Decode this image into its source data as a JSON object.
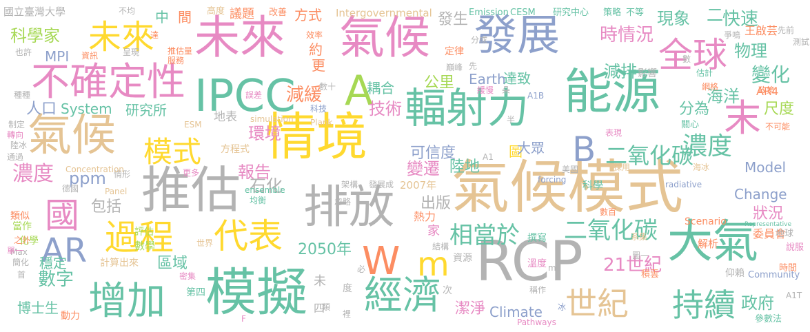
{
  "words": [
    {
      "text": "氣候模式",
      "color": "#e5c494"
    },
    {
      "text": "情境",
      "color": "#ffd92f"
    },
    {
      "text": "能源",
      "color": "#66c2a5"
    },
    {
      "text": "未來",
      "color": "#e78ac3"
    },
    {
      "text": "氣候",
      "color": "#e78ac3"
    },
    {
      "text": "推估",
      "color": "#b3b3b3"
    },
    {
      "text": "模擬",
      "color": "#66c2a5"
    },
    {
      "text": "排放",
      "color": "#b3b3b3"
    },
    {
      "text": "輻射力",
      "color": "#66c2a5"
    },
    {
      "text": "RCP",
      "color": "#b3b3b3"
    },
    {
      "text": "大氣",
      "color": "#66c2a5"
    },
    {
      "text": "IPCC",
      "color": "#66c2a5"
    },
    {
      "text": "發展",
      "color": "#8da0cb"
    },
    {
      "text": "氣候",
      "color": "#e5c494"
    },
    {
      "text": "增加",
      "color": "#66c2a5"
    },
    {
      "text": "不確定性",
      "color": "#e78ac3"
    },
    {
      "text": "全球",
      "color": "#e78ac3"
    },
    {
      "text": "經濟",
      "color": "#66c2a5"
    },
    {
      "text": "A",
      "color": "#a6d854"
    },
    {
      "text": "未來",
      "color": "#ffd92f"
    },
    {
      "text": "過程",
      "color": "#ffd92f"
    },
    {
      "text": "代表",
      "color": "#ffd92f"
    },
    {
      "text": "國",
      "color": "#e78ac3"
    },
    {
      "text": "AR",
      "color": "#8da0cb"
    },
    {
      "text": "模式",
      "color": "#ffd92f"
    },
    {
      "text": "W",
      "color": "#fc8d62"
    },
    {
      "text": "m",
      "color": "#ffd92f"
    },
    {
      "text": "持續",
      "color": "#66c2a5"
    },
    {
      "text": "世紀",
      "color": "#e5c494"
    },
    {
      "text": "末",
      "color": "#e78ac3"
    },
    {
      "text": "B",
      "color": "#8da0cb"
    },
    {
      "text": "二氧化碳",
      "color": "#66c2a5"
    },
    {
      "text": "二氧化碳",
      "color": "#66c2a5"
    },
    {
      "text": "相當於",
      "color": "#66c2a5"
    },
    {
      "text": "濃度",
      "color": "#66c2a5"
    },
    {
      "text": "濃度",
      "color": "#e78ac3"
    },
    {
      "text": "現象",
      "color": "#66c2a5"
    },
    {
      "text": "二",
      "color": "#66c2a5"
    },
    {
      "text": "快速",
      "color": "#66c2a5"
    },
    {
      "text": "時情況",
      "color": "#e78ac3"
    },
    {
      "text": "減排",
      "color": "#66c2a5"
    },
    {
      "text": "變化",
      "color": "#66c2a5"
    },
    {
      "text": "海洋",
      "color": "#66c2a5"
    },
    {
      "text": "物理",
      "color": "#66c2a5"
    },
    {
      "text": "科學家",
      "color": "#a6d854"
    },
    {
      "text": "人口",
      "color": "#8da0cb"
    },
    {
      "text": "System",
      "color": "#66c2a5"
    },
    {
      "text": "MPI",
      "color": "#8da0cb"
    },
    {
      "text": "ppm",
      "color": "#8da0cb"
    },
    {
      "text": "減緩",
      "color": "#fc8d62"
    },
    {
      "text": "耦合",
      "color": "#66c2a5"
    },
    {
      "text": "技術",
      "color": "#e78ac3"
    },
    {
      "text": "公里",
      "color": "#a6d854"
    },
    {
      "text": "Earth",
      "color": "#8da0cb"
    },
    {
      "text": "達致",
      "color": "#66c2a5"
    },
    {
      "text": "分為",
      "color": "#66c2a5"
    },
    {
      "text": "尺度",
      "color": "#a6d854"
    },
    {
      "text": "環境",
      "color": "#e78ac3"
    },
    {
      "text": "報告",
      "color": "#e78ac3"
    },
    {
      "text": "石化",
      "color": "#b3b3b3"
    },
    {
      "text": "可信度",
      "color": "#8da0cb"
    },
    {
      "text": "變遷",
      "color": "#e78ac3"
    },
    {
      "text": "陸地",
      "color": "#66c2a5"
    },
    {
      "text": "圖",
      "color": "#ffd92f"
    },
    {
      "text": "大眾",
      "color": "#8da0cb"
    },
    {
      "text": "Model",
      "color": "#8da0cb"
    },
    {
      "text": "Change",
      "color": "#8da0cb"
    },
    {
      "text": "狀況",
      "color": "#e78ac3"
    },
    {
      "text": "21世紀",
      "color": "#e78ac3"
    },
    {
      "text": "2050年",
      "color": "#66c2a5"
    },
    {
      "text": "數字",
      "color": "#66c2a5"
    },
    {
      "text": "區域",
      "color": "#66c2a5"
    },
    {
      "text": "潔淨",
      "color": "#e78ac3"
    },
    {
      "text": "Climate",
      "color": "#8da0cb"
    },
    {
      "text": "政府",
      "color": "#66c2a5"
    },
    {
      "text": "博士生",
      "color": "#66c2a5"
    },
    {
      "text": "穩定",
      "color": "#66c2a5"
    },
    {
      "text": "研究所",
      "color": "#66c2a5"
    },
    {
      "text": "包括",
      "color": "#b3b3b3"
    },
    {
      "text": "中",
      "color": "#66c2a5"
    },
    {
      "text": "間",
      "color": "#fc8d62"
    },
    {
      "text": "方式",
      "color": "#fc8d62"
    },
    {
      "text": "發生",
      "color": "#b3b3b3"
    },
    {
      "text": "約",
      "color": "#fc8d62"
    },
    {
      "text": "更",
      "color": "#fc8d62"
    },
    {
      "text": "定律",
      "color": "#fc8d62"
    },
    {
      "text": "出版",
      "color": "#b3b3b3"
    },
    {
      "text": "家",
      "color": "#e78ac3"
    },
    {
      "text": "Intergovernmental",
      "color": "#e5c494"
    },
    {
      "text": "國立臺灣大學",
      "color": "#b3b3b3"
    },
    {
      "text": "議題",
      "color": "#fc8d62"
    },
    {
      "text": "高度",
      "color": "#e5c494"
    },
    {
      "text": "改善",
      "color": "#fc8d62"
    },
    {
      "text": "不均",
      "color": "#b3b3b3"
    },
    {
      "text": "Emission",
      "color": "#66c2a5"
    },
    {
      "text": "CESM",
      "color": "#66c2a5"
    },
    {
      "text": "研究中心",
      "color": "#66c2a5"
    },
    {
      "text": "策略",
      "color": "#66c2a5"
    },
    {
      "text": "不等",
      "color": "#66c2a5"
    },
    {
      "text": "王啟芸",
      "color": "#fc8d62"
    },
    {
      "text": "影響",
      "color": "#b3b3b3"
    },
    {
      "text": "AR4",
      "color": "#fc8d62"
    },
    {
      "text": "委員會",
      "color": "#fc8d62"
    },
    {
      "text": "2007年",
      "color": "#e5c494"
    },
    {
      "text": "地表",
      "color": "#b3b3b3"
    },
    {
      "text": "方程式",
      "color": "#e5c494"
    },
    {
      "text": "熱力",
      "color": "#fc8d62"
    },
    {
      "text": "資源",
      "color": "#b3b3b3"
    },
    {
      "text": "科學",
      "color": "#66c2a5"
    },
    {
      "text": "解析",
      "color": "#fc8d62"
    },
    {
      "text": "撰寫",
      "color": "#66c2a5"
    },
    {
      "text": "溫度",
      "color": "#e78ac3"
    },
    {
      "text": "Community",
      "color": "#8da0cb"
    },
    {
      "text": "Scenario",
      "color": "#fc8d62"
    },
    {
      "text": "數學",
      "color": "#a6d854"
    },
    {
      "text": "評估",
      "color": "#a6d854"
    },
    {
      "text": "計算出來",
      "color": "#e5c494"
    },
    {
      "text": "第四",
      "color": "#66c2a5"
    },
    {
      "text": "動力",
      "color": "#fc8d62"
    },
    {
      "text": "密集",
      "color": "#e78ac3"
    },
    {
      "text": "化學",
      "color": "#a6d854"
    },
    {
      "text": "當作",
      "color": "#a6d854"
    },
    {
      "text": "類似",
      "color": "#fc8d62"
    },
    {
      "text": "地球",
      "color": "#b3b3b3"
    },
    {
      "text": "說服",
      "color": "#e78ac3"
    },
    {
      "text": "參數法",
      "color": "#66c2a5"
    },
    {
      "text": "時間",
      "color": "#fc8d62"
    },
    {
      "text": "積雲",
      "color": "#fc8d62"
    },
    {
      "text": "科技",
      "color": "#8da0cb"
    },
    {
      "text": "數十",
      "color": "#b3b3b3"
    },
    {
      "text": "誤差",
      "color": "#e78ac3"
    },
    {
      "text": "simulation",
      "color": "#e5c494"
    },
    {
      "text": "Plank",
      "color": "#e5c494"
    },
    {
      "text": "ESM",
      "color": "#e5c494"
    },
    {
      "text": "表現",
      "color": "#e78ac3"
    },
    {
      "text": "採用",
      "color": "#e5c494"
    },
    {
      "text": "網格",
      "color": "#fc8d62"
    },
    {
      "text": "關心",
      "color": "#66c2a5"
    },
    {
      "text": "不可能",
      "color": "#fc8d62"
    },
    {
      "text": "政策",
      "color": "#fc8d62"
    },
    {
      "text": "估計",
      "color": "#66c2a5"
    },
    {
      "text": "海冰",
      "color": "#e5c494"
    },
    {
      "text": "美國",
      "color": "#b3b3b3"
    },
    {
      "text": "forcing",
      "color": "#8da0cb"
    },
    {
      "text": "radiative",
      "color": "#8da0cb"
    },
    {
      "text": "Representative",
      "color": "#66c2a5"
    },
    {
      "text": "ensemble",
      "color": "#66c2a5"
    },
    {
      "text": "均衡",
      "color": "#66c2a5"
    },
    {
      "text": "發展成",
      "color": "#b3b3b3"
    },
    {
      "text": "忽略",
      "color": "#b3b3b3"
    },
    {
      "text": "架構",
      "color": "#b3b3b3"
    },
    {
      "text": "Panel",
      "color": "#e5c494"
    },
    {
      "text": "德國",
      "color": "#b3b3b3"
    },
    {
      "text": "情形",
      "color": "#b3b3b3"
    },
    {
      "text": "更多",
      "color": "#e78ac3"
    },
    {
      "text": "Concentration",
      "color": "#e5c494"
    },
    {
      "text": "通過",
      "color": "#b3b3b3"
    },
    {
      "text": "陸冰",
      "color": "#b3b3b3"
    },
    {
      "text": "轉向",
      "color": "#e78ac3"
    },
    {
      "text": "制定",
      "color": "#b3b3b3"
    },
    {
      "text": "種種",
      "color": "#b3b3b3"
    },
    {
      "text": "也許",
      "color": "#b3b3b3"
    },
    {
      "text": "達",
      "color": "#fc8d62"
    },
    {
      "text": "效率",
      "color": "#fc8d62"
    },
    {
      "text": "資訊",
      "color": "#fc8d62"
    },
    {
      "text": "服務",
      "color": "#fc8d62"
    },
    {
      "text": "呈現",
      "color": "#b3b3b3"
    },
    {
      "text": "推估量",
      "color": "#fc8d62"
    },
    {
      "text": "巔峰",
      "color": "#b3b3b3"
    },
    {
      "text": "緩慢",
      "color": "#e78ac3"
    },
    {
      "text": "朵",
      "color": "#b3b3b3"
    },
    {
      "text": "分成",
      "color": "#b3b3b3"
    },
    {
      "text": "先",
      "color": "#b3b3b3"
    },
    {
      "text": "數",
      "color": "#b3b3b3"
    },
    {
      "text": "爭鳴",
      "color": "#b3b3b3"
    },
    {
      "text": "測試",
      "color": "#b3b3b3"
    },
    {
      "text": "先前",
      "color": "#b3b3b3"
    },
    {
      "text": "A1B",
      "color": "#8da0cb"
    },
    {
      "text": "A1",
      "color": "#b3b3b3"
    },
    {
      "text": "半",
      "color": "#b3b3b3"
    },
    {
      "text": "世界",
      "color": "#e5c494"
    },
    {
      "text": "Max",
      "color": "#b3b3b3"
    },
    {
      "text": "簡化",
      "color": "#b3b3b3"
    },
    {
      "text": "之外",
      "color": "#fc8d62"
    },
    {
      "text": "單一",
      "color": "#e78ac3"
    },
    {
      "text": "首",
      "color": "#b3b3b3"
    },
    {
      "text": "必",
      "color": "#b3b3b3"
    },
    {
      "text": "F",
      "color": "#e78ac3"
    },
    {
      "text": "類",
      "color": "#b3b3b3"
    },
    {
      "text": "裡",
      "color": "#b3b3b3"
    },
    {
      "text": "結構",
      "color": "#b3b3b3"
    },
    {
      "text": "Pathways",
      "color": "#e78ac3"
    },
    {
      "text": "冰",
      "color": "#8da0cb"
    },
    {
      "text": "稱作",
      "color": "#b3b3b3"
    },
    {
      "text": "仰賴",
      "color": "#b3b3b3"
    },
    {
      "text": "數百",
      "color": "#fc8d62"
    },
    {
      "text": "系集",
      "color": "#e5c494"
    },
    {
      "text": "圖一",
      "color": "#b3b3b3"
    },
    {
      "text": "A1T",
      "color": "#b3b3b3"
    },
    {
      "text": "度",
      "color": "#b3b3b3"
    },
    {
      "text": "次",
      "color": "#b3b3b3"
    },
    {
      "text": "未",
      "color": "#b3b3b3"
    },
    {
      "text": "四",
      "color": "#b3b3b3"
    },
    {
      "text": "m",
      "color": "#b3b3b3"
    }
  ]
}
